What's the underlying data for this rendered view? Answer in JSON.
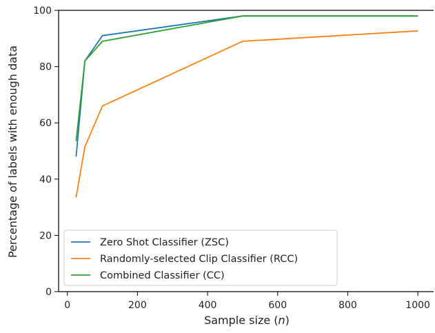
{
  "chart_data": {
    "type": "line",
    "xlabel": "Sample size (",
    "xlabel_var": "n",
    "xlabel_close": ")",
    "ylabel": "Percentage of labels with enough data",
    "xlim": [
      -25,
      1045
    ],
    "ylim": [
      0,
      100
    ],
    "xticks": [
      0,
      200,
      400,
      600,
      800,
      1000
    ],
    "yticks": [
      0,
      20,
      40,
      60,
      80,
      100
    ],
    "grid": false,
    "legend_position": "lower-left",
    "series": [
      {
        "name": "Zero Shot Classifier (ZSC)",
        "color": "#1f77b4",
        "x": [
          25,
          50,
          100,
          500,
          1000
        ],
        "y": [
          48,
          82,
          91,
          98,
          98
        ]
      },
      {
        "name": "Randomly-selected Clip Classifier (RCC)",
        "color": "#ff7f0e",
        "x": [
          25,
          50,
          100,
          500,
          1000
        ],
        "y": [
          33.5,
          51.5,
          66,
          89,
          92.7
        ]
      },
      {
        "name": "Combined Classifier (CC)",
        "color": "#2ca02c",
        "x": [
          25,
          50,
          100,
          500,
          1000
        ],
        "y": [
          53.5,
          82,
          89,
          98,
          98
        ]
      }
    ]
  }
}
